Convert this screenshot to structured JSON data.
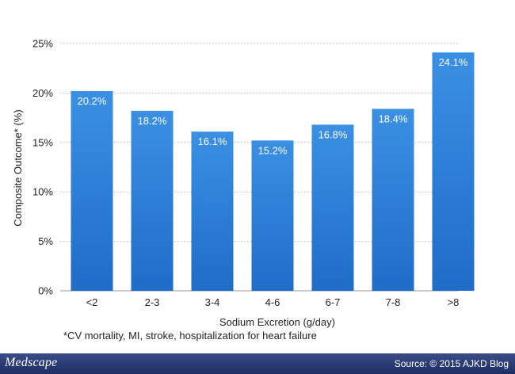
{
  "chart_data": {
    "type": "bar",
    "categories": [
      "<2",
      "2-3",
      "3-4",
      "4-6",
      "6-7",
      "7-8",
      ">8"
    ],
    "values": [
      20.2,
      18.2,
      16.1,
      15.2,
      16.8,
      18.4,
      24.1
    ],
    "value_labels": [
      "20.2%",
      "18.2%",
      "16.1%",
      "15.2%",
      "16.8%",
      "18.4%",
      "24.1%"
    ],
    "ylim": [
      0,
      25
    ],
    "yticks": [
      0,
      5,
      10,
      15,
      20,
      25
    ],
    "ytick_labels": [
      "0%",
      "5%",
      "10%",
      "15%",
      "20%",
      "25%"
    ],
    "xlabel": "Sodium Excretion (g/day)",
    "ylabel": "Composite Outcome* (%)",
    "grid": "horizontal dotted",
    "bar_color": "#2e7fd6"
  },
  "footnote": "*CV mortality, MI, stroke, hospitalization for heart failure",
  "footer": {
    "logo": "Medscape",
    "source": "Source: © 2015 AJKD Blog",
    "color": "#2b3b75"
  }
}
